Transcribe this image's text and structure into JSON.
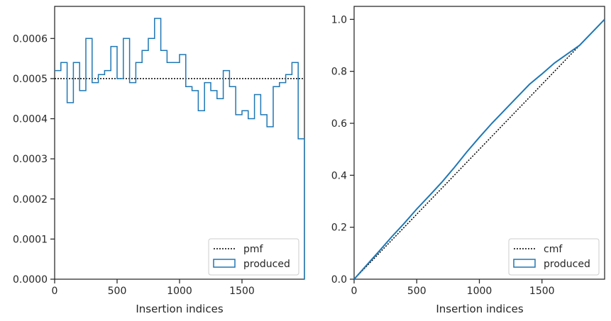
{
  "chart_data": [
    {
      "type": "histogram-step",
      "xlabel": "Insertion indices",
      "ylabel": "",
      "xlim": [
        0,
        2000
      ],
      "ylim": [
        0,
        0.00068
      ],
      "xticks": [
        0,
        500,
        1000,
        1500
      ],
      "xtick_labels": [
        "0",
        "500",
        "1000",
        "1500"
      ],
      "yticks": [
        0,
        0.0001,
        0.0002,
        0.0003,
        0.0004,
        0.0005,
        0.0006
      ],
      "ytick_labels": [
        "0.0000",
        "0.0001",
        "0.0002",
        "0.0003",
        "0.0004",
        "0.0005",
        "0.0006"
      ],
      "grid": false,
      "legend_position": "lower-right",
      "reference_line": {
        "name": "pmf",
        "y": 0.0005,
        "style": "dotted"
      },
      "series": [
        {
          "name": "produced",
          "bin_edges": [
            0,
            50,
            100,
            150,
            200,
            250,
            300,
            350,
            400,
            450,
            500,
            550,
            600,
            650,
            700,
            750,
            800,
            850,
            900,
            950,
            1000,
            1050,
            1100,
            1150,
            1200,
            1250,
            1300,
            1350,
            1400,
            1450,
            1500,
            1550,
            1600,
            1650,
            1700,
            1750,
            1800,
            1850,
            1900,
            1950,
            2000
          ],
          "values": [
            0.00052,
            0.00054,
            0.00044,
            0.00054,
            0.00047,
            0.0006,
            0.00049,
            0.00051,
            0.00052,
            0.00058,
            0.0005,
            0.0006,
            0.00049,
            0.00054,
            0.00057,
            0.0006,
            0.00065,
            0.00057,
            0.00054,
            0.00054,
            0.00056,
            0.00048,
            0.00047,
            0.00042,
            0.00049,
            0.00047,
            0.00045,
            0.00052,
            0.00048,
            0.00041,
            0.00042,
            0.0004,
            0.00046,
            0.00041,
            0.00038,
            0.00048,
            0.00049,
            0.00051,
            0.00054,
            0.00035
          ]
        }
      ],
      "legend": [
        "pmf",
        "produced"
      ]
    },
    {
      "type": "line",
      "xlabel": "Insertion indices",
      "ylabel": "",
      "xlim": [
        0,
        2000
      ],
      "ylim": [
        0,
        1.05
      ],
      "xticks": [
        0,
        500,
        1000,
        1500
      ],
      "xtick_labels": [
        "0",
        "500",
        "1000",
        "1500"
      ],
      "yticks": [
        0,
        0.2,
        0.4,
        0.6,
        0.8,
        1.0
      ],
      "ytick_labels": [
        "0.0",
        "0.2",
        "0.4",
        "0.6",
        "0.8",
        "1.0"
      ],
      "grid": false,
      "legend_position": "lower-right",
      "reference_line": {
        "name": "cmf",
        "from": [
          0,
          0
        ],
        "to": [
          2000,
          1.0
        ],
        "style": "dotted"
      },
      "series": [
        {
          "name": "produced",
          "x": [
            0,
            100,
            200,
            300,
            400,
            500,
            600,
            700,
            800,
            900,
            1000,
            1100,
            1200,
            1300,
            1400,
            1500,
            1600,
            1700,
            1800,
            1900,
            2000
          ],
          "y": [
            0,
            0.054,
            0.108,
            0.163,
            0.215,
            0.27,
            0.321,
            0.373,
            0.43,
            0.49,
            0.546,
            0.6,
            0.65,
            0.7,
            0.75,
            0.79,
            0.832,
            0.866,
            0.9,
            0.95,
            1.0
          ]
        }
      ],
      "legend": [
        "cmf",
        "produced"
      ]
    }
  ],
  "colors": {
    "series": "#1f77b4",
    "reference": "#000000",
    "axis": "#262626"
  }
}
